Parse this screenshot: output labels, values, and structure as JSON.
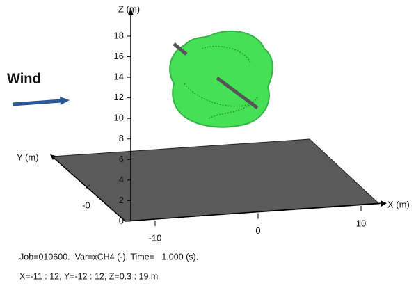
{
  "chart_data": {
    "type": "3d-cloud",
    "annotation": "Wind",
    "zlabel": "Z (m)",
    "xlabel": "X (m)",
    "ylabel": "Y (m)",
    "zticks": [
      0,
      2,
      4,
      6,
      8,
      10,
      12,
      14,
      16,
      18
    ],
    "xticks": [
      -10,
      0,
      10
    ],
    "yticks": [
      {
        "value": 0,
        "label": "-0"
      }
    ],
    "footer": [
      "Job=010600.  Var=xCH4 (-). Time=   1.000 (s).",
      "X=-11 : 12, Y=-12 : 12, Z=0.3 : 19 m"
    ],
    "color": "#33dd44"
  }
}
